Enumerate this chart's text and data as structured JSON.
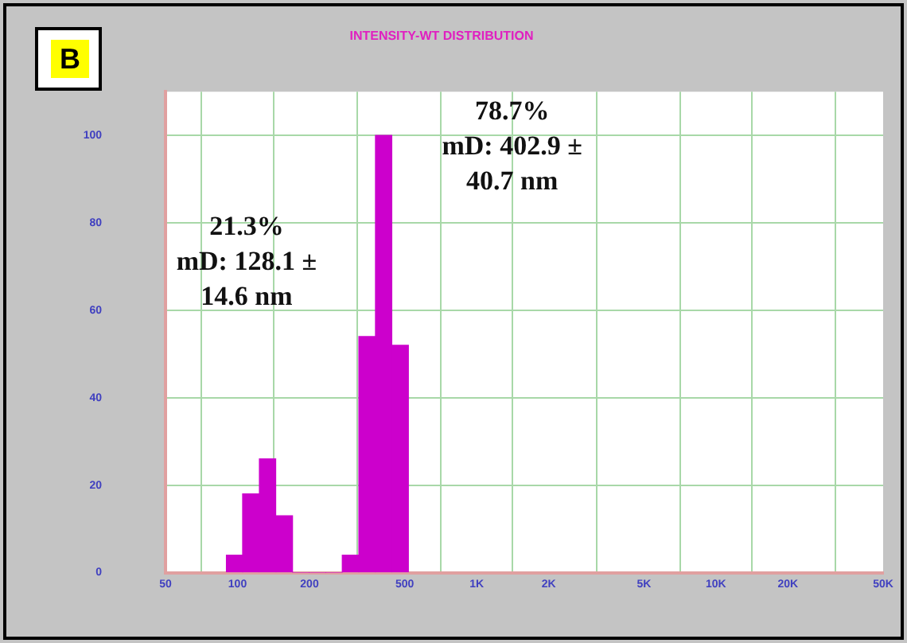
{
  "chart_data": {
    "type": "histogram",
    "title": "INTENSITY-WT DISTRIBUTION",
    "bins": [
      90,
      105,
      123,
      145,
      170,
      199,
      234,
      274,
      321,
      377,
      442,
      519
    ],
    "values": [
      4,
      18,
      26,
      13,
      0,
      0,
      0,
      4,
      54,
      100,
      52
    ],
    "color": "#cc00cc",
    "log": "x",
    "xlim": [
      50,
      50000
    ],
    "xticks": [
      50,
      100,
      200,
      500,
      {
        "value": 1000,
        "label": "1K"
      },
      {
        "value": 2000,
        "label": "2K"
      },
      {
        "value": 5000,
        "label": "5K"
      },
      {
        "value": 10000,
        "label": "10K"
      },
      {
        "value": 20000,
        "label": "20K"
      },
      {
        "value": 50000,
        "label": "50K"
      }
    ],
    "ylim": [
      0,
      110
    ],
    "yticks": [
      0,
      20,
      40,
      60,
      80,
      100
    ],
    "grid": true,
    "legend": false,
    "annotations": [
      "B",
      "21.3%\nmD: 128.1 ±\n14.6 nm",
      "78.7%\nmD: 402.9 ±\n40.7 nm"
    ]
  }
}
